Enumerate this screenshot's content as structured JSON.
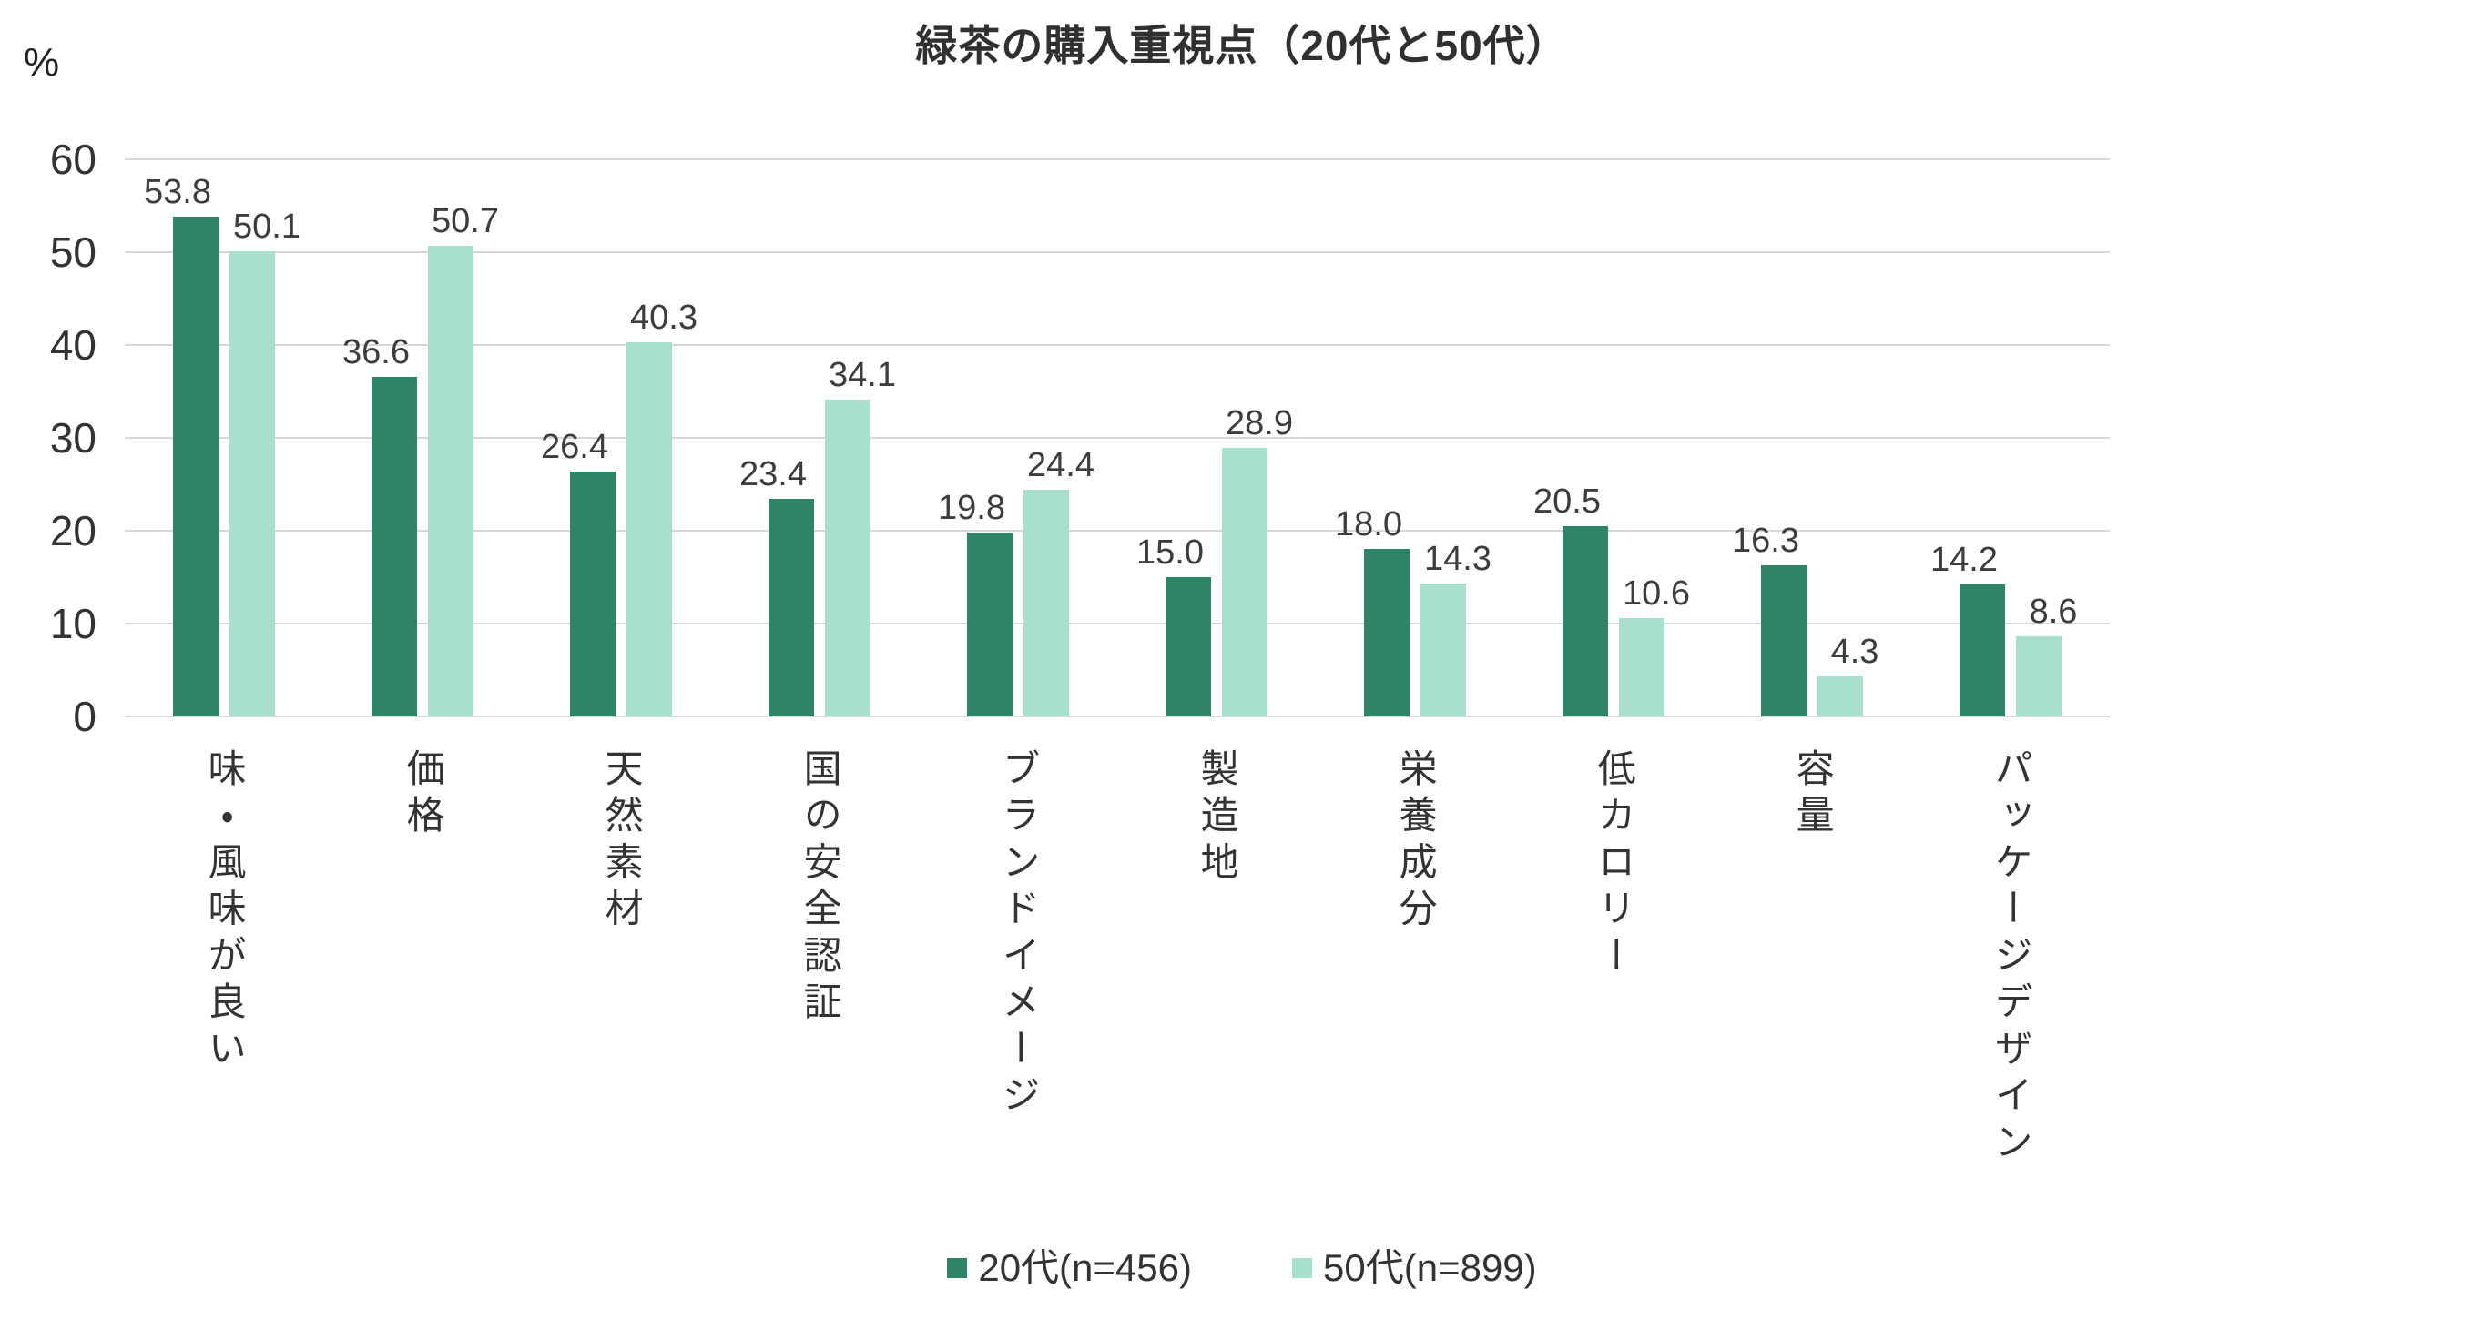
{
  "chart_data": {
    "type": "bar",
    "title": "緑茶の購入重視点（20代と50代）",
    "unit_label": "%",
    "categories": [
      "味・風味が良い",
      "価格",
      "天然素材",
      "国の安全認証",
      "ブランドイメージ",
      "製造地",
      "栄養成分",
      "低カロリー",
      "容量",
      "パッケージデザイン"
    ],
    "series": [
      {
        "name": "20代(n=456)",
        "color": "#2e8565",
        "values": [
          53.8,
          36.6,
          26.4,
          23.4,
          19.8,
          15.0,
          18.0,
          20.5,
          16.3,
          14.2
        ]
      },
      {
        "name": "50代(n=899)",
        "color": "#a9e0cd",
        "values": [
          50.1,
          50.7,
          40.3,
          34.1,
          24.4,
          28.9,
          14.3,
          10.6,
          4.3,
          8.6
        ]
      }
    ],
    "ylim": [
      0,
      60
    ],
    "yticks": [
      0,
      10,
      20,
      30,
      40,
      50,
      60
    ],
    "grid": true,
    "gridline_color": "#d8d8d8",
    "value_labels": true,
    "value_label_decimals": 1,
    "legend_position": "bottom"
  }
}
